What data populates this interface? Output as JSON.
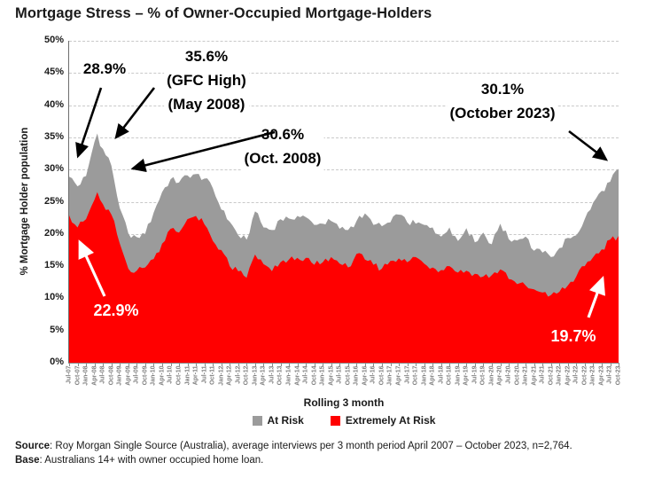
{
  "title": "Mortgage Stress – % of Owner-Occupied Mortgage-Holders",
  "colors": {
    "at_risk": "#9b9b9b",
    "extremely_at_risk": "#ff0000",
    "gridline": "#c9c9c9",
    "annotation_black": "#000000",
    "annotation_white": "#ffffff"
  },
  "chart_data": {
    "type": "area",
    "title": "Mortgage Stress – % of Owner-Occupied Mortgage-Holders",
    "xlabel": "Rolling 3 month",
    "ylabel": "% Mortgage Holder population",
    "ylim": [
      0,
      50
    ],
    "ytick_step": 5,
    "ytick_labels": [
      "0%",
      "5%",
      "10%",
      "15%",
      "20%",
      "25%",
      "30%",
      "35%",
      "40%",
      "45%",
      "50%"
    ],
    "grid": "horizontal-dashed",
    "legend_position": "bottom",
    "categories": [
      "Jul-07",
      "Oct-07",
      "Jan-08",
      "Apr-08",
      "Jul-08",
      "Oct-08",
      "Jan-09",
      "Apr-09",
      "Jul-09",
      "Oct-09",
      "Jan-10",
      "Apr-10",
      "Jul-10",
      "Oct-10",
      "Jan-11",
      "Apr-11",
      "Jul-11",
      "Oct-11",
      "Jan-12",
      "Apr-12",
      "Jul-12",
      "Oct-12",
      "Jan-13",
      "Apr-13",
      "Jul-13",
      "Oct-13",
      "Jan-14",
      "Apr-14",
      "Jul-14",
      "Oct-14",
      "Jan-15",
      "Apr-15",
      "Jul-15",
      "Oct-15",
      "Jan-16",
      "Apr-16",
      "Jul-16",
      "Oct-16",
      "Jan-17",
      "Apr-17",
      "Jul-17",
      "Oct-17",
      "Jan-18",
      "Apr-18",
      "Jul-18",
      "Oct-18",
      "Jan-19",
      "Apr-19",
      "Jul-19",
      "Oct-19",
      "Jan-20",
      "Apr-20",
      "Jul-20",
      "Oct-20",
      "Jan-21",
      "Apr-21",
      "Jul-21",
      "Oct-21",
      "Jan-22",
      "Apr-22",
      "Jul-22",
      "Oct-22",
      "Jan-23",
      "Apr-23",
      "Jul-23",
      "Oct-23"
    ],
    "series": [
      {
        "name": "At Risk",
        "color": "#9b9b9b",
        "values": [
          28.9,
          27.4,
          29.0,
          34.3,
          33.2,
          30.6,
          24.0,
          20.1,
          19.5,
          20.0,
          23.3,
          26.5,
          28.5,
          28.0,
          29.1,
          29.3,
          28.6,
          27.1,
          23.8,
          21.9,
          19.8,
          19.1,
          23.5,
          21.0,
          20.6,
          22.3,
          22.4,
          22.8,
          22.6,
          21.4,
          21.6,
          22.0,
          20.8,
          20.6,
          22.0,
          23.2,
          21.4,
          21.2,
          21.8,
          23.0,
          21.8,
          21.6,
          21.4,
          21.0,
          19.6,
          21.0,
          18.9,
          20.9,
          18.7,
          20.2,
          18.4,
          21.6,
          19.2,
          19.0,
          19.6,
          17.4,
          17.1,
          16.4,
          17.8,
          19.4,
          19.8,
          22.3,
          24.9,
          26.7,
          28.1,
          30.1
        ]
      },
      {
        "name": "Extremely At Risk",
        "color": "#ff0000",
        "values": [
          22.9,
          21.0,
          22.3,
          25.3,
          24.6,
          23.0,
          18.5,
          14.6,
          14.3,
          14.8,
          16.1,
          18.5,
          20.8,
          20.2,
          22.3,
          22.8,
          21.5,
          18.9,
          17.5,
          15.0,
          14.2,
          13.2,
          16.8,
          15.3,
          14.2,
          15.6,
          16.0,
          16.3,
          16.3,
          15.2,
          15.6,
          16.4,
          15.4,
          14.8,
          16.9,
          16.0,
          15.2,
          14.6,
          15.8,
          16.2,
          15.6,
          16.4,
          15.4,
          14.8,
          14.4,
          15.0,
          14.0,
          14.3,
          13.8,
          13.4,
          13.6,
          14.5,
          13.0,
          12.2,
          12.0,
          11.4,
          10.9,
          10.5,
          11.0,
          12.0,
          13.4,
          15.0,
          16.4,
          17.6,
          19.1,
          19.7
        ]
      }
    ],
    "gfc_peak": {
      "month": "May-08",
      "at_risk": 35.6,
      "extremely_at_risk": 26.5
    }
  },
  "annotations": {
    "start_at_risk": {
      "lines": [
        "28.9%"
      ]
    },
    "gfc_high": {
      "lines": [
        "35.6%",
        "(GFC High)",
        "(May 2008)"
      ]
    },
    "oct_2008": {
      "lines": [
        "30.6%",
        "(Oct. 2008)"
      ]
    },
    "oct_2023": {
      "lines": [
        "30.1%",
        "(October 2023)"
      ]
    },
    "start_extremely": {
      "lines": [
        "22.9%"
      ]
    },
    "end_extremely": {
      "lines": [
        "19.7%"
      ]
    }
  },
  "footer": {
    "source_label": "Source",
    "source_text": ": Roy Morgan Single Source (Australia), average interviews per 3 month period April 2007 – October 2023, n=2,764.",
    "base_label": "Base",
    "base_text": ": Australians 14+ with owner occupied home loan."
  }
}
